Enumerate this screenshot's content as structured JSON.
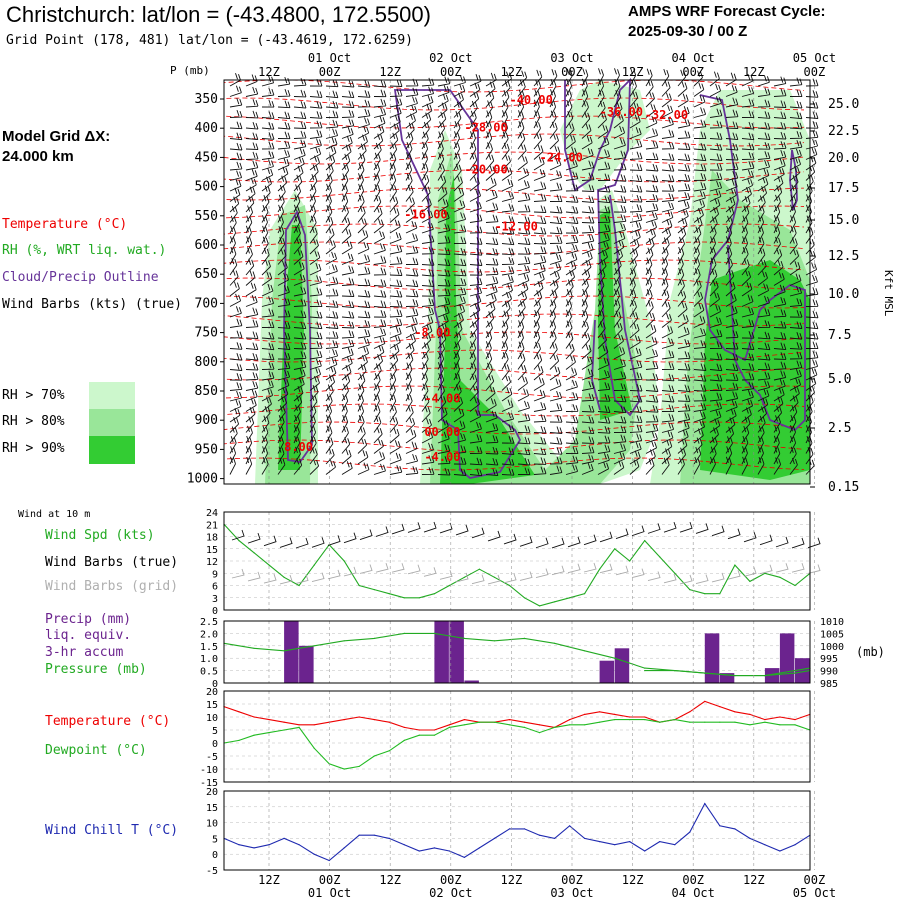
{
  "header": {
    "title": "Christchurch:  lat/lon = (-43.4800, 172.5500)",
    "grid_point": "Grid Point (178, 481) lat/lon = (-43.4619, 172.6259)",
    "cycle_line1": "AMPS WRF Forecast Cycle:",
    "cycle_line2": "2025-09-30 / 00  Z",
    "model_grid_line1": "Model Grid ΔX:",
    "model_grid_line2": " 24.000 km"
  },
  "legend": {
    "temperature": "Temperature (°C)",
    "rh": "RH (%, WRT liq. wat.)",
    "cloud": "Cloud/Precip Outline",
    "barbs": "Wind Barbs (kts) (true)",
    "rh70": "RH > 70%",
    "rh80": "RH > 80%",
    "rh90": "RH > 90%",
    "colors": {
      "temperature": "#ee0000",
      "rh70": "#ccf7cc",
      "rh80": "#99e699",
      "rh90": "#33cc33",
      "cloud": "#663399"
    }
  },
  "time_axis": {
    "top_hours": [
      "12Z",
      "00Z",
      "12Z",
      "00Z",
      "12Z",
      "00Z",
      "12Z",
      "00Z",
      "12Z",
      "00Z"
    ],
    "bottom_hours": [
      "12Z",
      "00Z",
      "12Z",
      "00Z",
      "12Z",
      "00Z",
      "12Z",
      "00Z",
      "12Z",
      "00Z"
    ],
    "date_labels": [
      {
        "label": "01 Oct",
        "hour_index": 1
      },
      {
        "label": "02 Oct",
        "hour_index": 3
      },
      {
        "label": "03 Oct",
        "hour_index": 5
      },
      {
        "label": "04 Oct",
        "hour_index": 7
      },
      {
        "label": "05 Oct",
        "hour_index": 9
      }
    ],
    "forecast_hours_span": [
      0,
      117
    ]
  },
  "chart_data": [
    {
      "type": "heatmap",
      "name": "pressure-time cross section",
      "y_axis_label": "P (mb)",
      "y_ticks": [
        "350",
        "400",
        "450",
        "500",
        "550",
        "600",
        "650",
        "700",
        "750",
        "800",
        "850",
        "900",
        "950",
        "1000"
      ],
      "y2_axis_label": "Kft MSL",
      "y2_ticks": [
        "25.0",
        "22.5",
        "20.0",
        "17.5",
        "15.0",
        "12.5",
        "10.0",
        "7.5",
        "5.0",
        "2.5",
        "0.15"
      ],
      "temperature_contour_labels": [
        "-40.00",
        "-36.00",
        "-32.00",
        "-28.00",
        "-24.00",
        "-20.00",
        "-16.00",
        "-12.00",
        "-8.00",
        "-4.00",
        "00.00",
        "-4.00",
        "8.00"
      ],
      "temperature_label_positions": [
        {
          "label": "-40.00",
          "hour": 57,
          "p": 370
        },
        {
          "label": "-36.00",
          "hour": 75,
          "p": 390
        },
        {
          "label": "-32.00",
          "hour": 84,
          "p": 395
        },
        {
          "label": "-28.00",
          "hour": 48,
          "p": 415
        },
        {
          "label": "-24.00",
          "hour": 63,
          "p": 465
        },
        {
          "label": "-20.00",
          "hour": 48,
          "p": 485
        },
        {
          "label": "-16.00",
          "hour": 36,
          "p": 560
        },
        {
          "label": "-12.00",
          "hour": 54,
          "p": 580
        },
        {
          "label": "-8.00",
          "hour": 38,
          "p": 755
        },
        {
          "label": "-4.00",
          "hour": 40,
          "p": 865
        },
        {
          "label": "00.00",
          "hour": 40,
          "p": 920
        },
        {
          "label": "-4.00",
          "hour": 40,
          "p": 962
        },
        {
          "label": "8.00",
          "hour": 12,
          "p": 945
        }
      ]
    },
    {
      "type": "line",
      "name": "Wind at 10 m",
      "title": "Wind at 10 m",
      "labels": [
        "Wind Spd (kts)",
        "Wind Barbs (true)",
        "Wind Barbs (grid)"
      ],
      "y_ticks": [
        "0",
        "3",
        "6",
        "9",
        "12",
        "15",
        "18",
        "21",
        "24"
      ],
      "ylim": [
        0,
        24
      ],
      "series": [
        {
          "name": "Wind Spd (kts)",
          "color": "#22aa22",
          "x": [
            0,
            3,
            6,
            9,
            12,
            15,
            18,
            21,
            24,
            27,
            30,
            33,
            36,
            39,
            42,
            45,
            48,
            51,
            54,
            57,
            60,
            63,
            66,
            69,
            72,
            75,
            78,
            81,
            84,
            87,
            90,
            93,
            96,
            99,
            102,
            105,
            108,
            111,
            114,
            117
          ],
          "values": [
            21,
            17,
            14,
            11,
            8,
            6,
            11,
            16,
            12,
            6,
            5,
            4,
            3,
            3,
            4,
            6,
            8,
            10,
            8,
            6,
            3,
            1,
            2,
            3,
            4,
            10,
            15,
            12,
            17,
            13,
            9,
            5,
            4,
            4,
            11,
            7,
            9,
            8,
            6,
            9
          ]
        }
      ]
    },
    {
      "type": "bar",
      "name": "Precip and Pressure",
      "labels": [
        "Precip (mm)",
        "liq. equiv.",
        "3-hr accum",
        "Pressure (mb)"
      ],
      "y_ticks": [
        "0",
        "0.5",
        "1.0",
        "1.5",
        "2.0",
        "2.5"
      ],
      "ylim": [
        0,
        2.5
      ],
      "y2_ticks": [
        "985",
        "990",
        "995",
        "1000",
        "1005",
        "1010"
      ],
      "y2lim": [
        985,
        1010
      ],
      "y2_label": "(mb)",
      "precip": {
        "color": "#6b238e",
        "x": [
          12,
          15,
          42,
          45,
          48,
          75,
          78,
          96,
          99,
          108,
          111
        ],
        "values": [
          2.5,
          1.5,
          2.5,
          2.5,
          0.1,
          0.9,
          1.4,
          2.0,
          0.4,
          0.6,
          2.0
        ],
        "extra": {
          "x": 114,
          "value": 1.0
        }
      },
      "series": [
        {
          "name": "Pressure (mb)",
          "color": "#22aa22",
          "x": [
            0,
            6,
            12,
            18,
            24,
            30,
            36,
            42,
            48,
            54,
            60,
            66,
            72,
            78,
            84,
            90,
            96,
            102,
            108,
            114,
            117
          ],
          "values": [
            1001,
            999,
            998,
            1000,
            1002,
            1003,
            1005,
            1005,
            1003,
            1002,
            1003,
            1001,
            998,
            995,
            991,
            990,
            989,
            988,
            988,
            989,
            990
          ]
        },
        {
          "name": "Pressure (mb) low",
          "color": "#22aa22",
          "x": [
            84,
            90,
            96,
            102,
            108,
            114,
            117
          ],
          "values": [
            990,
            990,
            989,
            988,
            988,
            990,
            991
          ]
        }
      ]
    },
    {
      "type": "line",
      "name": "Temperature and Dewpoint",
      "labels": [
        "Temperature (°C)",
        "Dewpoint (°C)"
      ],
      "y_ticks": [
        "-15",
        "-10",
        "-5",
        "0",
        "5",
        "10",
        "15",
        "20"
      ],
      "ylim": [
        -15,
        20
      ],
      "series": [
        {
          "name": "Temperature (°C)",
          "color": "#ee0000",
          "x": [
            0,
            3,
            6,
            9,
            12,
            15,
            18,
            21,
            24,
            27,
            30,
            33,
            36,
            39,
            42,
            45,
            48,
            51,
            54,
            57,
            60,
            63,
            66,
            69,
            72,
            75,
            78,
            81,
            84,
            87,
            90,
            93,
            96,
            99,
            102,
            105,
            108,
            111,
            114,
            117
          ],
          "values": [
            14,
            12,
            10,
            9,
            8,
            7,
            7,
            8,
            9,
            10,
            9,
            8,
            6,
            5,
            5,
            7,
            9,
            8,
            8,
            9,
            8,
            7,
            6,
            9,
            11,
            12,
            11,
            10,
            10,
            8,
            9,
            12,
            16,
            14,
            12,
            11,
            9,
            10,
            9,
            11
          ]
        },
        {
          "name": "Dewpoint (°C)",
          "color": "#22bb22",
          "x": [
            0,
            3,
            6,
            9,
            12,
            15,
            18,
            21,
            24,
            27,
            30,
            33,
            36,
            39,
            42,
            45,
            48,
            51,
            54,
            57,
            60,
            63,
            66,
            69,
            72,
            75,
            78,
            81,
            84,
            87,
            90,
            93,
            96,
            99,
            102,
            105,
            108,
            111,
            114,
            117
          ],
          "values": [
            0,
            1,
            3,
            4,
            5,
            6,
            -2,
            -8,
            -10,
            -9,
            -5,
            -3,
            1,
            3,
            3,
            6,
            7,
            8,
            8,
            7,
            6,
            4,
            6,
            7,
            7,
            8,
            9,
            9,
            9,
            8,
            9,
            8,
            8,
            8,
            8,
            7,
            8,
            7,
            7,
            5
          ]
        }
      ]
    },
    {
      "type": "line",
      "name": "Wind Chill",
      "labels": [
        "Wind Chill T (°C)"
      ],
      "y_ticks": [
        "-5",
        "0",
        "5",
        "10",
        "15",
        "20"
      ],
      "ylim": [
        -5,
        20
      ],
      "series": [
        {
          "name": "Wind Chill T (°C)",
          "color": "#1f2ab0",
          "x": [
            0,
            3,
            6,
            9,
            12,
            15,
            18,
            21,
            24,
            27,
            30,
            33,
            36,
            39,
            42,
            45,
            48,
            51,
            54,
            57,
            60,
            63,
            66,
            69,
            72,
            75,
            78,
            81,
            84,
            87,
            90,
            93,
            96,
            99,
            102,
            105,
            108,
            111,
            114,
            117
          ],
          "values": [
            5,
            3,
            2,
            3,
            5,
            3,
            0,
            -2,
            2,
            6,
            6,
            5,
            3,
            1,
            2,
            1,
            -1,
            2,
            5,
            8,
            8,
            6,
            5,
            9,
            5,
            4,
            3,
            4,
            1,
            4,
            3,
            7,
            16,
            9,
            8,
            5,
            3,
            1,
            3,
            6
          ]
        }
      ]
    }
  ]
}
